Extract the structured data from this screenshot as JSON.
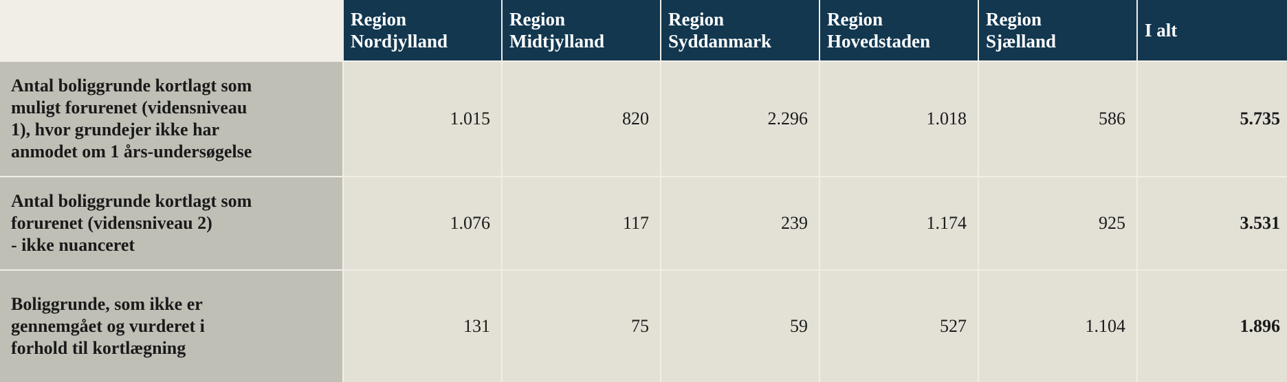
{
  "table": {
    "header": [
      [
        "Region",
        "Nordjylland"
      ],
      [
        "Region",
        "Midtjylland"
      ],
      [
        "Region",
        "Syddanmark"
      ],
      [
        "Region",
        "Hovedstaden"
      ],
      [
        "Region",
        "Sjælland"
      ],
      [
        "I alt"
      ]
    ],
    "rows": [
      {
        "label": [
          "Antal boliggrunde kortlagt som",
          "muligt forurenet (vidensniveau",
          "1), hvor grundejer ikke har",
          "anmodet om 1 års-undersøgelse"
        ],
        "cells": [
          "1.015",
          "820",
          "2.296",
          "1.018",
          "586",
          "5.735"
        ]
      },
      {
        "label": [
          "Antal boliggrunde kortlagt som",
          "forurenet (vidensniveau 2)",
          "- ikke nuanceret"
        ],
        "cells": [
          "1.076",
          "117",
          "239",
          "1.174",
          "925",
          "3.531"
        ]
      },
      {
        "label": [
          "Boliggrunde, som ikke er",
          "gennemgået og vurderet i",
          "forhold til kortlægning"
        ],
        "cells": [
          "131",
          "75",
          "59",
          "527",
          "1.104",
          "1.896"
        ]
      }
    ]
  }
}
